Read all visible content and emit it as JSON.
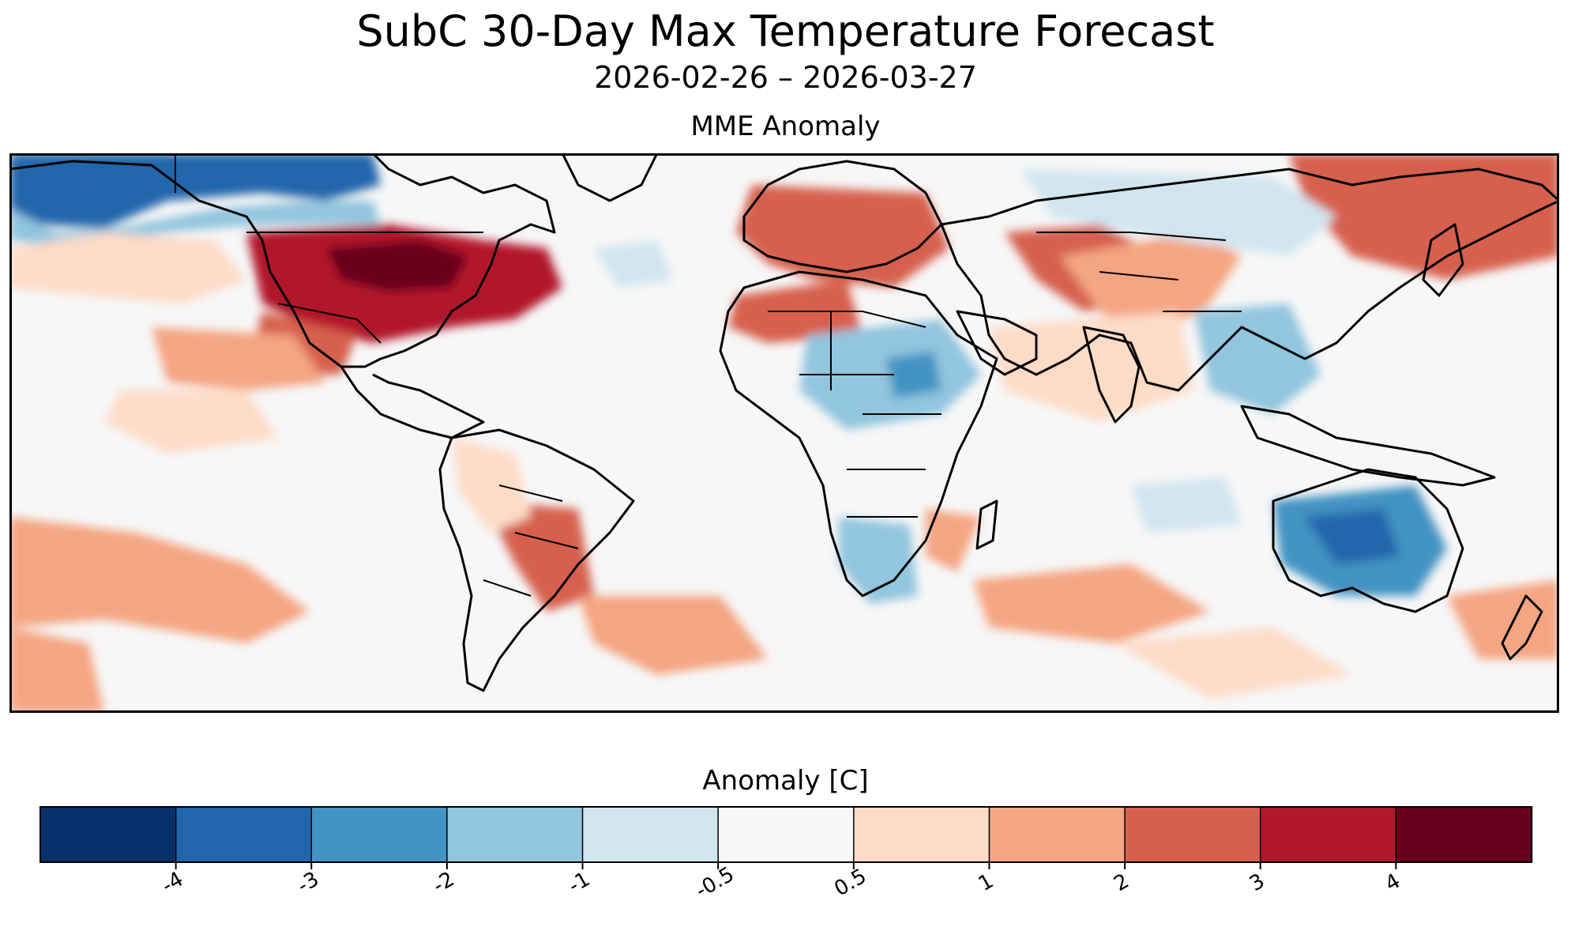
{
  "title": "SubC 30-Day Max Temperature Forecast",
  "subtitle": "2026-02-26 – 2026-03-27",
  "panel_title": "MME Anomaly",
  "colorbar": {
    "label": "Anomaly [C]",
    "colors": [
      "#08306b",
      "#2166ac",
      "#4393c3",
      "#92c5de",
      "#d1e5f0",
      "#f7f7f7",
      "#fddbc7",
      "#f4a582",
      "#d6604d",
      "#b2182b",
      "#67001f"
    ],
    "ticks": [
      "-4",
      "-3",
      "-2",
      "-1",
      "-0.5",
      "0.5",
      "1",
      "2",
      "3",
      "4"
    ]
  },
  "map": {
    "projection": "global lon/lat, Americas left",
    "background": "#f7f7f7",
    "anomaly_regions": [
      {
        "name": "Alaska / Arctic Canada",
        "color": "#2166ac"
      },
      {
        "name": "Central & Eastern US",
        "color": "#67001f"
      },
      {
        "name": "Mexico / Southwest US",
        "color": "#d6604d"
      },
      {
        "name": "Europe",
        "color": "#d6604d"
      },
      {
        "name": "Northeast Asia",
        "color": "#d6604d"
      },
      {
        "name": "Northeast Africa",
        "color": "#92c5de"
      },
      {
        "name": "Southeast Asia",
        "color": "#92c5de"
      },
      {
        "name": "Australia",
        "color": "#2166ac"
      },
      {
        "name": "Southern South America",
        "color": "#f4a582"
      },
      {
        "name": "Southern Africa",
        "color": "#92c5de"
      }
    ]
  }
}
